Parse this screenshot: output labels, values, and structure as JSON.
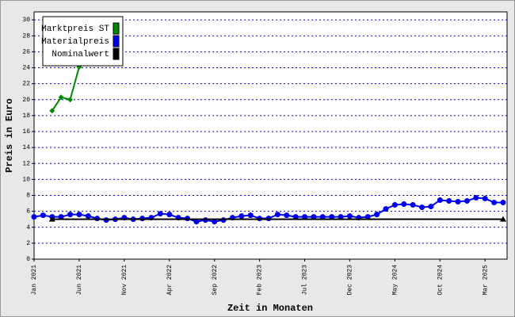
{
  "chart_data": {
    "type": "line",
    "y_label": "Preis in Euro",
    "x_label": "Zeit in Monaten",
    "categories": [
      "Jan 2021",
      null,
      null,
      null,
      null,
      "Jun 2021",
      null,
      null,
      null,
      null,
      "Nov 2021",
      null,
      null,
      null,
      null,
      "Apr 2022",
      null,
      null,
      null,
      null,
      "Sep 2022",
      null,
      null,
      null,
      null,
      "Feb 2023",
      null,
      null,
      null,
      null,
      "Jul 2023",
      null,
      null,
      null,
      null,
      "Dec 2023",
      null,
      null,
      null,
      null,
      "May 2024",
      null,
      null,
      null,
      null,
      "Oct 2024",
      null,
      null,
      null,
      null,
      "Mar 2025",
      null,
      null
    ],
    "series": [
      {
        "name": "Marktpreis ST",
        "color": "#008800",
        "marker": "diamond",
        "values": [
          null,
          null,
          18.6,
          20.3,
          20.0,
          24.1,
          null,
          null,
          null,
          null,
          null,
          null,
          null,
          null,
          null,
          null,
          null,
          null,
          null,
          null,
          null,
          null,
          null,
          null,
          null,
          null,
          null,
          null,
          null,
          null,
          null,
          null,
          null,
          null,
          null,
          null,
          null,
          null,
          null,
          null,
          null,
          null,
          null,
          null,
          null,
          null,
          null,
          null,
          null,
          null,
          null,
          null,
          null
        ]
      },
      {
        "name": "Materialpreis",
        "color": "#0000ee",
        "marker": "circle",
        "values": [
          5.3,
          5.5,
          5.3,
          5.3,
          5.6,
          5.6,
          5.4,
          5.1,
          4.9,
          5.0,
          5.2,
          5.0,
          5.1,
          5.2,
          5.7,
          5.6,
          5.2,
          5.1,
          4.7,
          4.9,
          4.7,
          4.9,
          5.2,
          5.4,
          5.5,
          5.1,
          5.1,
          5.6,
          5.5,
          5.3,
          5.3,
          5.3,
          5.3,
          5.3,
          5.3,
          5.4,
          5.2,
          5.3,
          5.6,
          6.3,
          6.8,
          6.9,
          6.8,
          6.5,
          6.6,
          7.4,
          7.3,
          7.2,
          7.3,
          7.7,
          7.6,
          7.1,
          7.1
        ]
      },
      {
        "name": "Nominalwert",
        "color": "#000000",
        "marker": "triangle-ends",
        "values": [
          null,
          null,
          5,
          5,
          5,
          5,
          5,
          5,
          5,
          5,
          5,
          5,
          5,
          5,
          5,
          5,
          5,
          5,
          5,
          5,
          5,
          5,
          5,
          5,
          5,
          5,
          5,
          5,
          5,
          5,
          5,
          5,
          5,
          5,
          5,
          5,
          5,
          5,
          5,
          5,
          5,
          5,
          5,
          5,
          5,
          5,
          5,
          5,
          5,
          5,
          5,
          5,
          5
        ]
      }
    ],
    "ylim": [
      0,
      31
    ],
    "yticks": [
      0,
      2,
      4,
      6,
      8,
      10,
      12,
      14,
      16,
      18,
      20,
      22,
      24,
      26,
      28,
      30
    ],
    "grid": true,
    "legend": "top-left"
  }
}
